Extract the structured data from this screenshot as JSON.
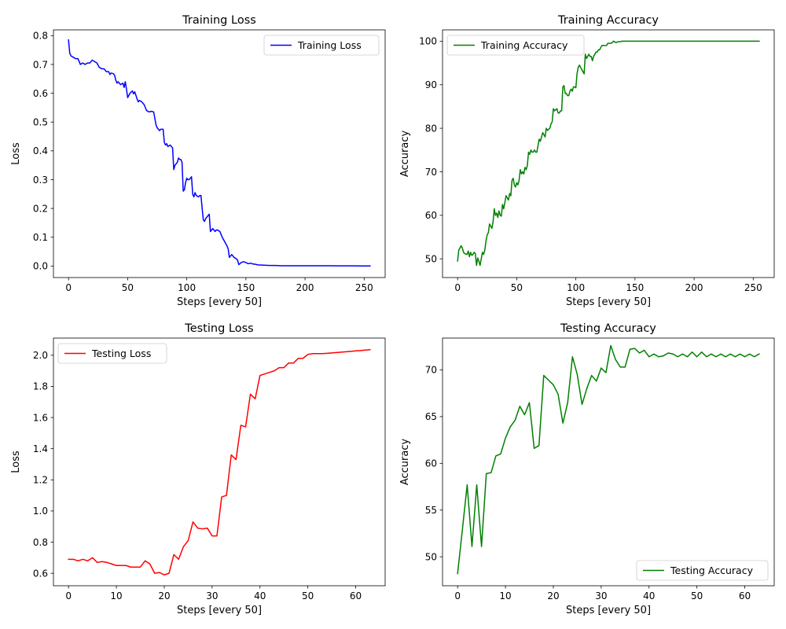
{
  "chart_data": [
    {
      "type": "line",
      "title": "Training Loss",
      "xlabel": "Steps [every 50]",
      "ylabel": "Loss",
      "xlim": [
        -12.75,
        267.75
      ],
      "ylim": [
        -0.04,
        0.82
      ],
      "xticks": [
        0,
        50,
        100,
        150,
        200,
        250
      ],
      "yticks": [
        0.0,
        0.1,
        0.2,
        0.3,
        0.4,
        0.5,
        0.6,
        0.7,
        0.8
      ],
      "ytick_decimals": 1,
      "legend_position": "upper right",
      "grid": false,
      "series": [
        {
          "name": "Training Loss",
          "color": "#0000ff",
          "x": [
            0,
            1,
            2,
            4,
            6,
            8,
            9,
            10,
            12,
            14,
            16,
            18,
            19,
            20,
            22,
            24,
            26,
            28,
            30,
            32,
            34,
            35,
            36,
            38,
            39,
            40,
            41,
            42,
            44,
            46,
            47,
            48,
            49,
            50,
            52,
            54,
            55,
            56,
            58,
            59,
            60,
            62,
            64,
            65,
            66,
            68,
            70,
            72,
            74,
            75,
            76,
            77,
            78,
            80,
            81,
            82,
            83,
            84,
            86,
            88,
            89,
            90,
            91,
            92,
            93,
            94,
            95,
            96,
            97,
            98,
            99,
            100,
            101,
            102,
            104,
            105,
            106,
            107,
            108,
            110,
            111,
            112,
            113,
            114,
            115,
            116,
            117,
            118,
            119,
            120,
            122,
            124,
            125,
            126,
            128,
            130,
            132,
            134,
            135,
            136,
            138,
            140,
            142,
            143,
            144,
            146,
            148,
            150,
            152,
            154,
            156,
            158,
            160,
            165,
            170,
            175,
            180,
            190,
            200,
            210,
            220,
            230,
            240,
            250,
            255
          ],
          "y": [
            0.785,
            0.74,
            0.73,
            0.725,
            0.72,
            0.72,
            0.71,
            0.7,
            0.705,
            0.7,
            0.705,
            0.705,
            0.71,
            0.715,
            0.71,
            0.705,
            0.69,
            0.685,
            0.685,
            0.675,
            0.675,
            0.665,
            0.67,
            0.668,
            0.662,
            0.645,
            0.635,
            0.64,
            0.63,
            0.635,
            0.62,
            0.64,
            0.615,
            0.585,
            0.6,
            0.608,
            0.598,
            0.605,
            0.58,
            0.57,
            0.575,
            0.57,
            0.56,
            0.55,
            0.54,
            0.535,
            0.537,
            0.535,
            0.49,
            0.48,
            0.475,
            0.47,
            0.475,
            0.475,
            0.43,
            0.42,
            0.425,
            0.415,
            0.42,
            0.41,
            0.335,
            0.35,
            0.355,
            0.36,
            0.375,
            0.37,
            0.37,
            0.36,
            0.26,
            0.265,
            0.29,
            0.305,
            0.3,
            0.3,
            0.31,
            0.25,
            0.24,
            0.255,
            0.245,
            0.24,
            0.245,
            0.245,
            0.2,
            0.16,
            0.155,
            0.165,
            0.17,
            0.175,
            0.18,
            0.12,
            0.13,
            0.12,
            0.125,
            0.125,
            0.12,
            0.1,
            0.085,
            0.07,
            0.06,
            0.03,
            0.04,
            0.03,
            0.025,
            0.02,
            0.005,
            0.012,
            0.015,
            0.012,
            0.008,
            0.01,
            0.007,
            0.006,
            0.004,
            0.003,
            0.002,
            0.002,
            0.001,
            0.001,
            0.001,
            0.001,
            0.0008,
            0.0006,
            0.0005,
            0.0004,
            0.0003
          ]
        }
      ]
    },
    {
      "type": "line",
      "title": "Training Accuracy",
      "xlabel": "Steps [every 50]",
      "ylabel": "Accuracy",
      "xlim": [
        -12.75,
        267.75
      ],
      "ylim": [
        45.7,
        102.6
      ],
      "xticks": [
        0,
        50,
        100,
        150,
        200,
        250
      ],
      "yticks": [
        50,
        60,
        70,
        80,
        90,
        100
      ],
      "ytick_decimals": 0,
      "legend_position": "upper left",
      "grid": false,
      "series": [
        {
          "name": "Training Accuracy",
          "color": "#008000",
          "x": [
            0,
            1,
            2,
            3,
            4,
            5,
            6,
            8,
            9,
            10,
            11,
            12,
            13,
            14,
            15,
            16,
            17,
            18,
            19,
            20,
            21,
            22,
            23,
            24,
            25,
            26,
            27,
            28,
            29,
            30,
            31,
            32,
            33,
            34,
            35,
            36,
            37,
            38,
            39,
            40,
            41,
            42,
            43,
            44,
            45,
            46,
            47,
            48,
            49,
            50,
            51,
            52,
            53,
            54,
            55,
            56,
            57,
            58,
            59,
            60,
            61,
            62,
            63,
            64,
            65,
            66,
            67,
            68,
            69,
            70,
            72,
            74,
            75,
            76,
            78,
            79,
            80,
            81,
            82,
            84,
            85,
            86,
            87,
            88,
            89,
            90,
            91,
            92,
            93,
            94,
            95,
            96,
            97,
            98,
            99,
            100,
            101,
            102,
            103,
            104,
            105,
            106,
            107,
            108,
            109,
            110,
            111,
            112,
            113,
            114,
            115,
            116,
            117,
            118,
            119,
            120,
            121,
            122,
            123,
            124,
            125,
            126,
            127,
            128,
            129,
            130,
            131,
            132,
            133,
            134,
            135,
            136,
            137,
            138,
            139,
            140,
            141,
            142,
            143,
            144,
            145,
            146,
            147,
            148,
            150,
            152,
            155,
            158,
            160,
            165,
            170,
            180,
            190,
            200,
            210,
            220,
            230,
            240,
            250,
            255
          ],
          "y": [
            49.5,
            52.0,
            52.5,
            53.0,
            52.5,
            51.5,
            51.2,
            51.0,
            51.8,
            50.5,
            51.5,
            50.8,
            51.0,
            51.5,
            51.2,
            48.5,
            50.2,
            49.5,
            48.5,
            50.0,
            51.5,
            51.0,
            52.0,
            54.0,
            55.5,
            56.0,
            58.0,
            57.5,
            57.0,
            58.5,
            61.5,
            60.0,
            60.5,
            59.5,
            61.0,
            60.0,
            59.8,
            62.5,
            61.5,
            63.0,
            64.5,
            64.0,
            63.5,
            65.0,
            64.5,
            68.0,
            68.5,
            67.0,
            66.5,
            67.5,
            67.0,
            68.0,
            70.5,
            69.5,
            70.0,
            69.5,
            71.0,
            70.5,
            71.5,
            74.5,
            74.0,
            75.0,
            74.5,
            74.5,
            75.0,
            74.5,
            74.5,
            76.0,
            77.5,
            77.0,
            79.0,
            78.0,
            80.0,
            79.5,
            80.0,
            81.0,
            81.5,
            84.5,
            84.0,
            84.5,
            83.5,
            83.5,
            84.0,
            84.0,
            89.5,
            89.8,
            88.0,
            88.0,
            87.5,
            87.5,
            88.5,
            89.0,
            88.5,
            89.5,
            89.5,
            89.3,
            92.5,
            94.0,
            94.5,
            94.0,
            93.5,
            93.0,
            92.5,
            97.0,
            96.0,
            96.5,
            97.0,
            96.5,
            96.5,
            95.5,
            96.5,
            97.0,
            97.5,
            97.5,
            98.0,
            98.0,
            98.5,
            99.0,
            99.0,
            99.0,
            99.0,
            99.0,
            99.5,
            99.5,
            99.5,
            99.5,
            99.8,
            100.0,
            99.8,
            99.7,
            99.8,
            99.9,
            99.9,
            99.9,
            100.0,
            100.0,
            100.0,
            100.0,
            100.0,
            100.0,
            100.0,
            100.0,
            100.0,
            100.0,
            100.0,
            100.0,
            100.0,
            100.0,
            100.0,
            100.0,
            100.0,
            100.0,
            100.0,
            100.0,
            100.0,
            100.0,
            100.0,
            100.0,
            100.0,
            100.0
          ]
        }
      ]
    },
    {
      "type": "line",
      "title": "Testing Loss",
      "xlabel": "Steps [every 50]",
      "ylabel": "Loss",
      "xlim": [
        -3.15,
        66.15
      ],
      "ylim": [
        0.52,
        2.11
      ],
      "xticks": [
        0,
        10,
        20,
        30,
        40,
        50,
        60
      ],
      "yticks": [
        0.6,
        0.8,
        1.0,
        1.2,
        1.4,
        1.6,
        1.8,
        2.0
      ],
      "ytick_decimals": 1,
      "legend_position": "upper left",
      "grid": false,
      "series": [
        {
          "name": "Testing Loss",
          "color": "#ff0000",
          "x": [
            0,
            1,
            2,
            3,
            4,
            5,
            6,
            7,
            8,
            9,
            10,
            11,
            12,
            13,
            14,
            15,
            16,
            17,
            18,
            19,
            20,
            21,
            22,
            23,
            24,
            25,
            26,
            27,
            28,
            29,
            30,
            31,
            32,
            33,
            34,
            35,
            36,
            37,
            38,
            39,
            40,
            41,
            42,
            43,
            44,
            45,
            46,
            47,
            48,
            49,
            50,
            51,
            52,
            53,
            54,
            55,
            56,
            57,
            58,
            59,
            60,
            61,
            62,
            63
          ],
          "y": [
            0.69,
            0.69,
            0.68,
            0.69,
            0.68,
            0.7,
            0.67,
            0.675,
            0.67,
            0.66,
            0.65,
            0.65,
            0.65,
            0.64,
            0.64,
            0.64,
            0.68,
            0.66,
            0.6,
            0.605,
            0.59,
            0.6,
            0.72,
            0.69,
            0.77,
            0.81,
            0.93,
            0.89,
            0.885,
            0.89,
            0.84,
            0.84,
            1.09,
            1.1,
            1.36,
            1.33,
            1.55,
            1.54,
            1.75,
            1.72,
            1.87,
            1.88,
            1.89,
            1.9,
            1.92,
            1.92,
            1.95,
            1.95,
            1.98,
            1.98,
            2.005,
            2.01,
            2.01,
            2.01,
            2.012,
            2.015,
            2.017,
            2.02,
            2.022,
            2.025,
            2.028,
            2.03,
            2.033,
            2.036
          ]
        }
      ]
    },
    {
      "type": "line",
      "title": "Testing Accuracy",
      "xlabel": "Steps [every 50]",
      "ylabel": "Accuracy",
      "xlim": [
        -3.15,
        66.15
      ],
      "ylim": [
        46.9,
        73.4
      ],
      "xticks": [
        0,
        10,
        20,
        30,
        40,
        50,
        60
      ],
      "yticks": [
        50,
        55,
        60,
        65,
        70
      ],
      "ytick_decimals": 0,
      "legend_position": "lower right",
      "grid": false,
      "series": [
        {
          "name": "Testing Accuracy",
          "color": "#008000",
          "x": [
            0,
            1,
            2,
            3,
            4,
            5,
            6,
            7,
            8,
            9,
            10,
            11,
            12,
            13,
            14,
            15,
            16,
            17,
            18,
            19,
            20,
            21,
            22,
            23,
            24,
            25,
            26,
            27,
            28,
            29,
            30,
            31,
            32,
            33,
            34,
            35,
            36,
            37,
            38,
            39,
            40,
            41,
            42,
            43,
            44,
            45,
            46,
            47,
            48,
            49,
            50,
            51,
            52,
            53,
            54,
            55,
            56,
            57,
            58,
            59,
            60,
            61,
            62,
            63
          ],
          "y": [
            48.2,
            52.9,
            57.7,
            51.1,
            57.7,
            51.1,
            58.9,
            59.0,
            60.8,
            61.0,
            62.7,
            63.9,
            64.6,
            66.1,
            65.2,
            66.5,
            61.6,
            61.9,
            69.4,
            68.9,
            68.4,
            67.4,
            64.3,
            66.5,
            71.4,
            69.5,
            66.3,
            68.0,
            69.4,
            68.8,
            70.2,
            69.7,
            72.6,
            71.1,
            70.3,
            70.3,
            72.2,
            72.3,
            71.8,
            72.1,
            71.4,
            71.7,
            71.4,
            71.5,
            71.8,
            71.7,
            71.4,
            71.7,
            71.4,
            71.9,
            71.4,
            71.9,
            71.4,
            71.7,
            71.4,
            71.7,
            71.4,
            71.7,
            71.4,
            71.7,
            71.4,
            71.7,
            71.4,
            71.7
          ]
        }
      ]
    }
  ]
}
